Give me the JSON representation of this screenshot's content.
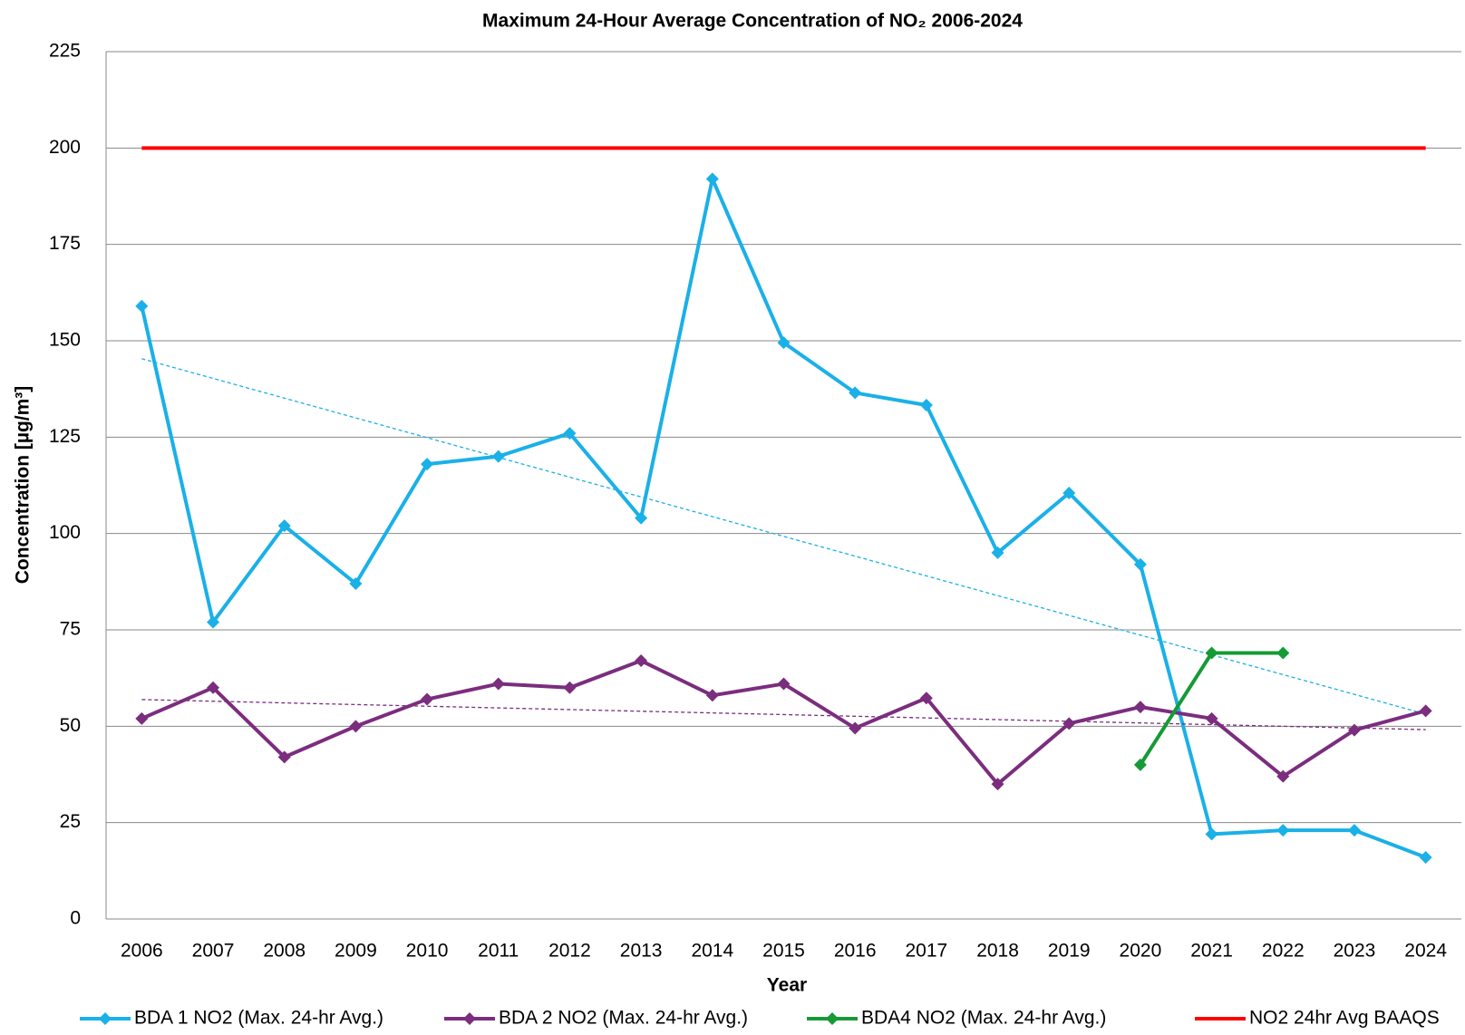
{
  "chart_data": {
    "type": "line",
    "title": "Maximum 24-Hour Average Concentration of NO₂ 2006-2024",
    "x_label": "Year",
    "y_label": "Concentration [µg/m³]",
    "categories": [
      "2006",
      "2007",
      "2008",
      "2009",
      "2010",
      "2011",
      "2012",
      "2013",
      "2014",
      "2015",
      "2016",
      "2017",
      "2018",
      "2019",
      "2020",
      "2021",
      "2022",
      "2023",
      "2024"
    ],
    "series": [
      {
        "name": "BDA 1 NO2 (Max. 24-hr Avg.)",
        "color": "#1ab0e8",
        "marker": true,
        "trendline": true,
        "values": [
          159,
          77,
          102,
          87,
          118,
          120,
          126,
          104,
          192,
          149.5,
          136.5,
          133.3,
          95,
          110.5,
          92,
          22,
          23,
          23,
          16
        ]
      },
      {
        "name": "BDA 2 NO2 (Max. 24-hr Avg.)",
        "color": "#7b2d7e",
        "marker": true,
        "trendline": true,
        "values": [
          52,
          60,
          42,
          50,
          57,
          61,
          60,
          67,
          58,
          61,
          49.5,
          57.3,
          35,
          50.7,
          55,
          52,
          37,
          49,
          54
        ]
      },
      {
        "name": "BDA4 NO2 (Max. 24-hr Avg.)",
        "color": "#159a36",
        "marker": true,
        "trendline": false,
        "values": [
          null,
          null,
          null,
          null,
          null,
          null,
          null,
          null,
          null,
          null,
          null,
          null,
          null,
          null,
          40,
          69,
          69,
          null,
          null
        ]
      },
      {
        "name": "NO2 24hr Avg BAAQS",
        "color": "#ff0000",
        "marker": false,
        "trendline": false,
        "values": [
          200,
          200,
          200,
          200,
          200,
          200,
          200,
          200,
          200,
          200,
          200,
          200,
          200,
          200,
          200,
          200,
          200,
          200,
          200
        ]
      }
    ],
    "ylim": [
      0,
      225
    ],
    "yticks": [
      0,
      25,
      50,
      75,
      100,
      125,
      150,
      175,
      200,
      225
    ],
    "grid": true,
    "legend": "bottom"
  }
}
